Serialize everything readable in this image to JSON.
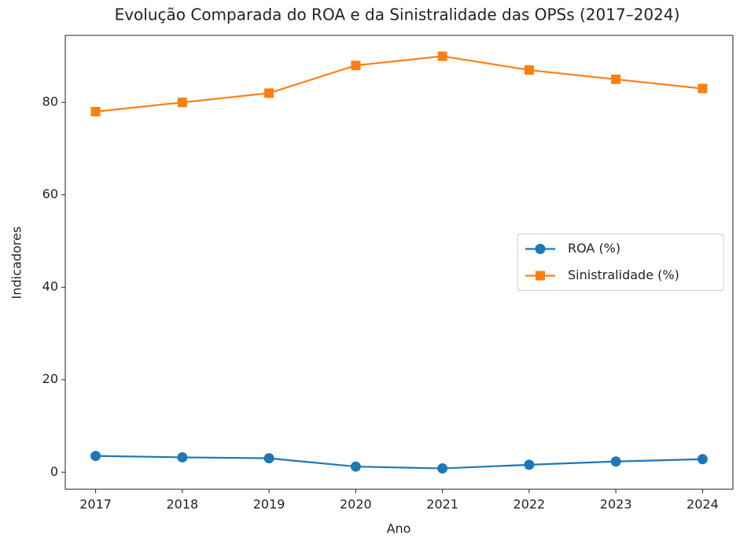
{
  "chart_data": {
    "type": "line",
    "title": "Evolução Comparada do ROA e da Sinistralidade das OPSs (2017–2024)",
    "xlabel": "Ano",
    "ylabel": "Indicadores",
    "x": [
      2017,
      2018,
      2019,
      2020,
      2021,
      2022,
      2023,
      2024
    ],
    "series": [
      {
        "name": "ROA (%)",
        "color": "#1f77b4",
        "marker": "circle",
        "values": [
          3.5,
          3.2,
          3.0,
          1.2,
          0.8,
          1.6,
          2.3,
          2.8
        ]
      },
      {
        "name": "Sinistralidade (%)",
        "color": "#ff7f0e",
        "marker": "square",
        "values": [
          78,
          80,
          82,
          88,
          90,
          87,
          85,
          83
        ]
      }
    ],
    "xlim": [
      2016.65,
      2024.35
    ],
    "xticks": [
      2017,
      2018,
      2019,
      2020,
      2021,
      2022,
      2023,
      2024
    ],
    "ylim": [
      -3.7,
      94.5
    ],
    "yticks": [
      0,
      20,
      40,
      60,
      80
    ],
    "grid": false,
    "legend": "center right"
  }
}
